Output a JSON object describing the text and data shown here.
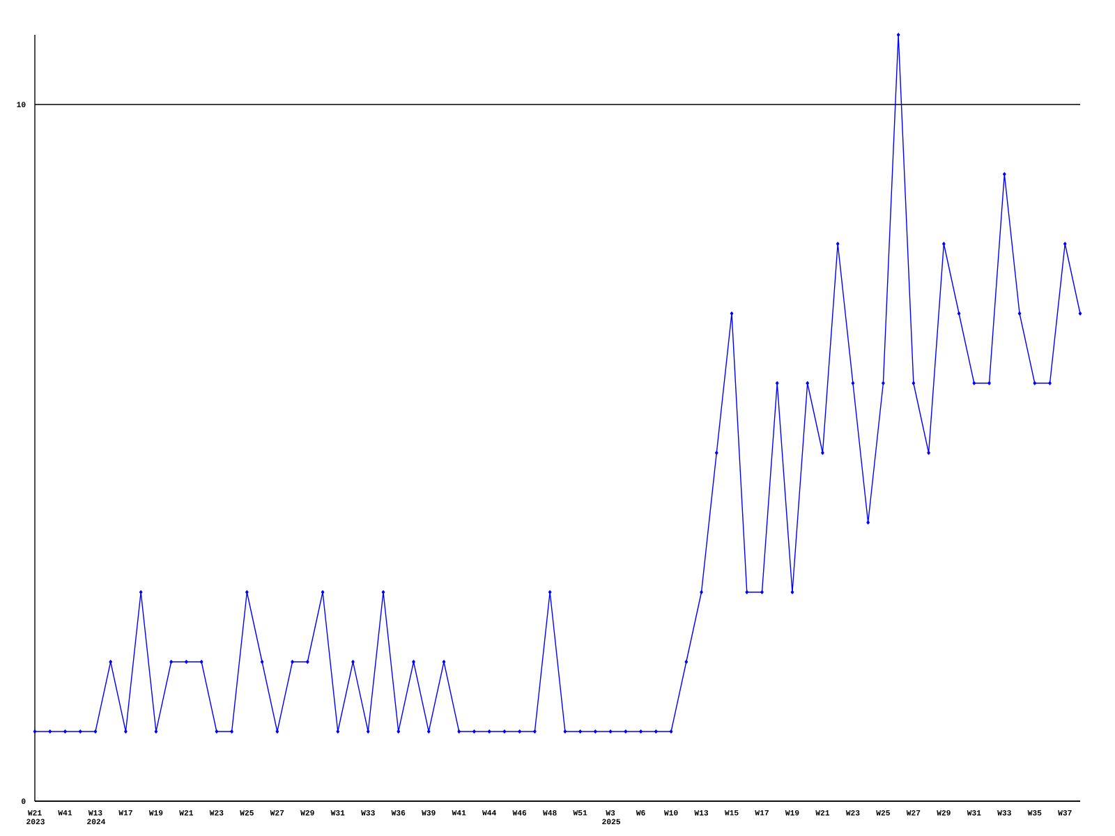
{
  "chart_data": {
    "type": "line",
    "categories": [
      "W21 2023",
      null,
      "W41",
      null,
      "W13 2024",
      null,
      "W17",
      null,
      "W19",
      null,
      "W21",
      null,
      "W23",
      null,
      "W25",
      null,
      "W27",
      null,
      "W29",
      null,
      "W31",
      null,
      "W33",
      null,
      "W36",
      null,
      "W39",
      null,
      "W41",
      null,
      "W44",
      null,
      "W46",
      null,
      "W48",
      null,
      "W51",
      null,
      "W3 2025",
      null,
      "W6",
      null,
      "W10",
      null,
      "W13",
      null,
      "W15",
      null,
      "W17",
      null,
      "W19",
      null,
      "W21",
      null,
      "W23",
      null,
      "W25",
      null,
      "W27",
      null,
      "W29",
      null,
      "W31",
      null,
      "W33",
      null,
      "W35",
      null,
      "W37",
      null
    ],
    "values": [
      1,
      1,
      1,
      1,
      1,
      2,
      1,
      3,
      1,
      2,
      2,
      2,
      1,
      1,
      3,
      2,
      1,
      2,
      2,
      3,
      1,
      2,
      1,
      3,
      1,
      2,
      1,
      2,
      1,
      1,
      1,
      1,
      1,
      1,
      3,
      1,
      1,
      1,
      1,
      1,
      1,
      1,
      1,
      2,
      3,
      5,
      7,
      3,
      3,
      6,
      3,
      6,
      5,
      8,
      6,
      4,
      6,
      11,
      6,
      5,
      8,
      7,
      6,
      6,
      9,
      7,
      6,
      6,
      8,
      7
    ],
    "color": "#0000ff",
    "marker": "diamond",
    "line_style": "solid",
    "ylim": [
      0,
      11
    ],
    "yticks": [
      0,
      10
    ],
    "grid": "y"
  }
}
